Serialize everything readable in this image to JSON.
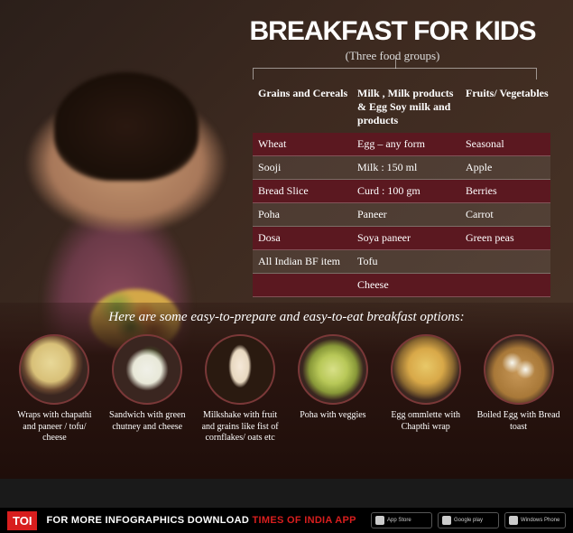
{
  "title": {
    "text": "BREAKFAST FOR KIDS",
    "fontsize": 30
  },
  "subtitle": "(Three food groups)",
  "columns": {
    "c1": "Grains and Cereals",
    "c2": "Milk , Milk products & Egg Soy milk and  products",
    "c3": "Fruits/ Vegetables"
  },
  "rows": [
    {
      "c1": "Wheat",
      "c2": "Egg – any form",
      "c3": "Seasonal",
      "tone": "dark"
    },
    {
      "c1": "Sooji",
      "c2": "Milk : 150 ml",
      "c3": "Apple",
      "tone": "light"
    },
    {
      "c1": "Bread Slice",
      "c2": "Curd : 100 gm",
      "c3": "Berries",
      "tone": "dark"
    },
    {
      "c1": "Poha",
      "c2": "Paneer",
      "c3": "Carrot",
      "tone": "light"
    },
    {
      "c1": "Dosa",
      "c2": "Soya paneer",
      "c3": "Green peas",
      "tone": "dark"
    },
    {
      "c1": "All Indian BF item",
      "c2": "Tofu",
      "c3": "",
      "tone": "light"
    },
    {
      "c1": "",
      "c2": "Cheese",
      "c3": "",
      "tone": "dark"
    }
  ],
  "options_title": "Here are some easy-to-prepare and easy-to-eat breakfast options:",
  "options": [
    "Wraps with chapathi and paneer / tofu/ cheese",
    "Sandwich with green chutney and cheese",
    "Milkshake with fruit and grains like fist of cornflakes/ oats etc",
    "Poha with veggies",
    "Egg ommlette with Chapthi wrap",
    "Boiled Egg with Bread toast"
  ],
  "footer": {
    "logo": "TOI",
    "text_pre": "FOR MORE  INFOGRAPHICS DOWNLOAD ",
    "text_em": "TIMES OF INDIA  APP",
    "stores": [
      "App Store",
      "Google play",
      "Windows Phone"
    ]
  },
  "colors": {
    "dark_row": "#5b1820",
    "accent": "#d81e1e"
  }
}
